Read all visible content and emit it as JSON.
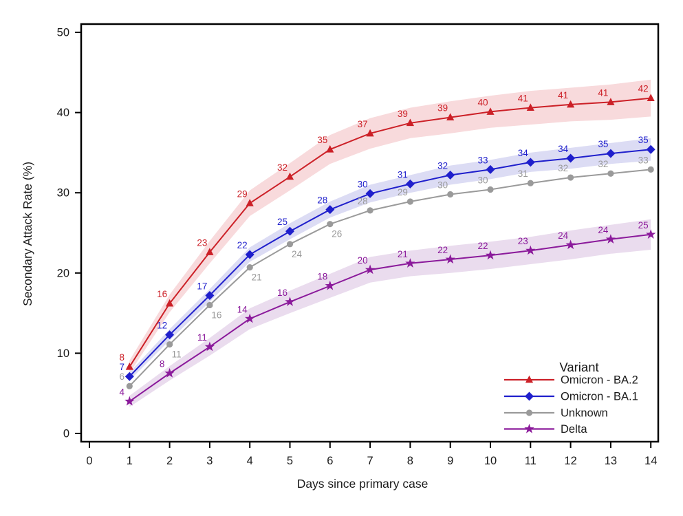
{
  "chart_data": {
    "type": "line",
    "title": "",
    "xlabel": "Days since primary case",
    "ylabel": "Secondary Attack Rate (%)",
    "legend_title": "Variant",
    "legend_position": "inside-bottom-right",
    "grid": false,
    "background": "#FFFFFF",
    "axis_color": "#000000",
    "xlim": [
      0,
      14.25
    ],
    "ylim": [
      -1,
      51
    ],
    "x_ticks": [
      0,
      1,
      2,
      3,
      4,
      5,
      6,
      7,
      8,
      9,
      10,
      11,
      12,
      13,
      14
    ],
    "y_ticks": [
      0,
      10,
      20,
      30,
      40,
      50
    ],
    "x": [
      1,
      2,
      3,
      4,
      5,
      6,
      7,
      8,
      9,
      10,
      11,
      12,
      13,
      14
    ],
    "series": [
      {
        "name": "Omicron - BA.2",
        "marker": "triangle",
        "color": "#CC2027",
        "band_color": "#F8DADC",
        "values": [
          8,
          16,
          23,
          29,
          32,
          35,
          37,
          39,
          39,
          40,
          41,
          41,
          41,
          42
        ],
        "plot_values": [
          8.3,
          16.2,
          22.6,
          28.7,
          32.0,
          35.4,
          37.4,
          38.7,
          39.4,
          40.1,
          40.6,
          41.0,
          41.3,
          41.8
        ],
        "band_halfwidth": [
          0.8,
          1.1,
          1.4,
          1.6,
          1.7,
          1.8,
          1.9,
          1.9,
          2.0,
          2.0,
          2.1,
          2.1,
          2.2,
          2.3
        ],
        "labels_below": []
      },
      {
        "name": "Omicron - BA.1",
        "marker": "diamond",
        "color": "#1F1FCC",
        "band_color": "#DCDCF4",
        "values": [
          7,
          12,
          17,
          22,
          25,
          28,
          30,
          31,
          32,
          33,
          34,
          34,
          35,
          35
        ],
        "plot_values": [
          7.1,
          12.3,
          17.2,
          22.3,
          25.2,
          27.9,
          29.9,
          31.1,
          32.2,
          32.9,
          33.8,
          34.3,
          34.9,
          35.4
        ],
        "band_halfwidth": [
          0.5,
          0.7,
          0.8,
          0.9,
          1.0,
          1.0,
          1.1,
          1.1,
          1.2,
          1.2,
          1.2,
          1.3,
          1.3,
          1.4
        ],
        "labels_below": []
      },
      {
        "name": "Unknown",
        "marker": "circle",
        "color": "#9A9A9A",
        "band_color": null,
        "values": [
          6,
          11,
          16,
          21,
          24,
          26,
          28,
          29,
          30,
          30,
          31,
          32,
          32,
          33
        ],
        "plot_values": [
          5.9,
          11.1,
          16.0,
          20.7,
          23.6,
          26.1,
          27.8,
          28.9,
          29.8,
          30.4,
          31.2,
          31.9,
          32.4,
          32.9
        ],
        "band_halfwidth": null,
        "labels_below": [
          1,
          2,
          3,
          4,
          5
        ]
      },
      {
        "name": "Delta",
        "marker": "star",
        "color": "#8B1A9B",
        "band_color": "#EADCEE",
        "values": [
          4,
          8,
          11,
          14,
          16,
          18,
          20,
          21,
          22,
          22,
          23,
          24,
          24,
          25
        ],
        "plot_values": [
          4.0,
          7.5,
          10.8,
          14.3,
          16.4,
          18.4,
          20.4,
          21.2,
          21.7,
          22.2,
          22.8,
          23.5,
          24.2,
          24.8
        ],
        "band_halfwidth": [
          0.7,
          0.9,
          1.1,
          1.3,
          1.4,
          1.5,
          1.6,
          1.6,
          1.7,
          1.7,
          1.7,
          1.8,
          1.8,
          1.9
        ],
        "labels_below": []
      }
    ]
  }
}
